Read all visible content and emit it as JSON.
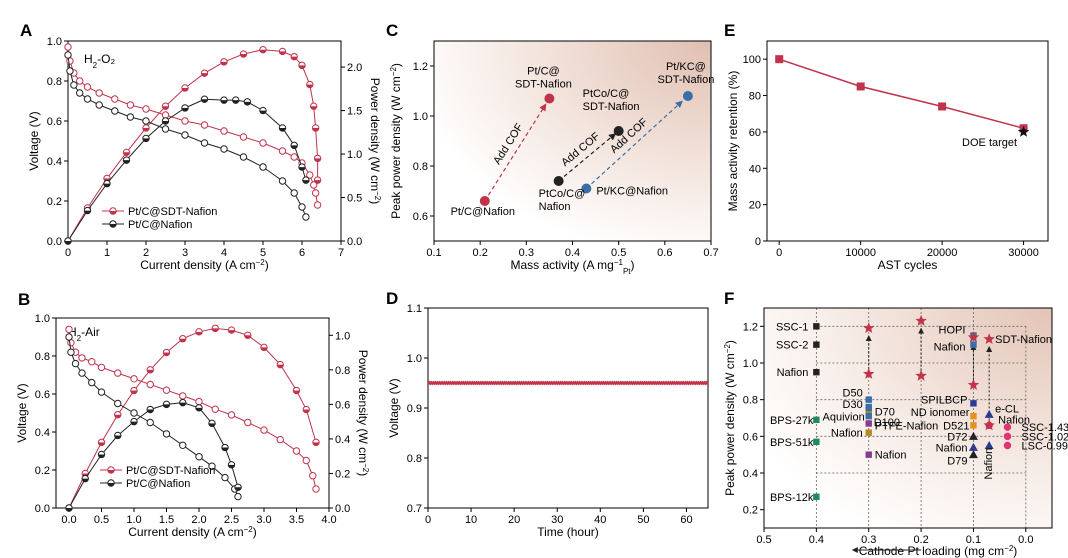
{
  "colors": {
    "red": "#c0334b",
    "black": "#222222",
    "blue": "#3a6ea5",
    "axis": "#000000"
  },
  "chart_data": [
    {
      "id": "A",
      "type": "line",
      "panel_label": "A",
      "xlabel": "Current density (A cm⁻²)",
      "ylabel": "Voltage (V)",
      "y2label": "Power density (W cm⁻²)",
      "xlim": [
        0,
        7
      ],
      "ylim": [
        0,
        1.0
      ],
      "y2lim": [
        0,
        2.3
      ],
      "xticks": [
        "0",
        "1",
        "2",
        "3",
        "4",
        "5",
        "6",
        "7"
      ],
      "yticks": [
        "0.0",
        "0.2",
        "0.4",
        "0.6",
        "0.8",
        "1.0"
      ],
      "y2ticks": [
        "0.0",
        "0.5",
        "1.0",
        "1.5",
        "2.0"
      ],
      "annotation": "H₂-O₂",
      "legend": [
        "Pt/C@SDT-Nafion",
        "Pt/C@Nafion"
      ],
      "series": [
        {
          "name": "Pt/C@SDT-Nafion",
          "color": "red",
          "kind": "voltage",
          "x": [
            0,
            0.05,
            0.15,
            0.3,
            0.5,
            0.8,
            1.2,
            1.6,
            2.0,
            2.5,
            3.0,
            3.5,
            4.0,
            4.5,
            5.0,
            5.5,
            5.8,
            6.0,
            6.2,
            6.3,
            6.35,
            6.4
          ],
          "y": [
            0.97,
            0.9,
            0.84,
            0.8,
            0.77,
            0.74,
            0.71,
            0.68,
            0.66,
            0.63,
            0.6,
            0.58,
            0.55,
            0.52,
            0.49,
            0.45,
            0.42,
            0.39,
            0.33,
            0.28,
            0.24,
            0.18
          ]
        },
        {
          "name": "Pt/C@SDT-Nafion",
          "color": "red",
          "kind": "power",
          "x": [
            0,
            0.5,
            1.0,
            1.5,
            2.0,
            2.5,
            3.0,
            3.5,
            4.0,
            4.5,
            5.0,
            5.5,
            5.8,
            6.0,
            6.2,
            6.3,
            6.35,
            6.4,
            6.4
          ],
          "y": [
            0,
            0.38,
            0.72,
            1.02,
            1.3,
            1.55,
            1.76,
            1.93,
            2.06,
            2.15,
            2.2,
            2.18,
            2.12,
            2.02,
            1.8,
            1.55,
            1.3,
            0.95,
            0.7
          ]
        },
        {
          "name": "Pt/C@Nafion",
          "color": "black",
          "kind": "voltage",
          "x": [
            0,
            0.05,
            0.15,
            0.3,
            0.5,
            0.8,
            1.2,
            1.6,
            2.0,
            2.5,
            3.0,
            3.5,
            4.0,
            4.5,
            5.0,
            5.5,
            5.8,
            6.0,
            6.1
          ],
          "y": [
            0.93,
            0.85,
            0.78,
            0.74,
            0.71,
            0.68,
            0.65,
            0.62,
            0.6,
            0.56,
            0.53,
            0.49,
            0.46,
            0.42,
            0.37,
            0.3,
            0.24,
            0.17,
            0.12
          ]
        },
        {
          "name": "Pt/C@Nafion",
          "color": "black",
          "kind": "power",
          "x": [
            0,
            0.5,
            1.0,
            1.5,
            2.0,
            2.5,
            3.0,
            3.5,
            4.0,
            4.3,
            4.6,
            5.0,
            5.5,
            5.8,
            6.0,
            6.1
          ],
          "y": [
            0,
            0.35,
            0.66,
            0.93,
            1.18,
            1.38,
            1.53,
            1.63,
            1.62,
            1.62,
            1.6,
            1.5,
            1.3,
            1.1,
            0.85,
            0.7
          ]
        }
      ]
    },
    {
      "id": "B",
      "type": "line",
      "panel_label": "B",
      "xlabel": "Current density (A cm⁻²)",
      "ylabel": "Voltage (V)",
      "y2label": "Power density (W cm⁻²)",
      "xlim": [
        -0.2,
        4.0
      ],
      "ylim": [
        0,
        1.0
      ],
      "y2lim": [
        0,
        1.1
      ],
      "xticks": [
        "0.0",
        "0.5",
        "1.0",
        "1.5",
        "2.0",
        "2.5",
        "3.0",
        "3.5",
        "4.0"
      ],
      "yticks": [
        "0.0",
        "0.2",
        "0.4",
        "0.6",
        "0.8",
        "1.0"
      ],
      "y2ticks": [
        "0.0",
        "0.2",
        "0.4",
        "0.6",
        "0.8",
        "1.0"
      ],
      "annotation": "H₂-Air",
      "legend": [
        "Pt/C@SDT-Nafion",
        "Pt/C@Nafion"
      ],
      "series": [
        {
          "name": "Pt/C@SDT-Nafion",
          "color": "red",
          "kind": "voltage",
          "x": [
            0,
            0.03,
            0.1,
            0.2,
            0.35,
            0.5,
            0.75,
            1.0,
            1.25,
            1.5,
            1.75,
            2.0,
            2.25,
            2.5,
            2.75,
            3.0,
            3.25,
            3.5,
            3.65,
            3.75,
            3.8
          ],
          "y": [
            0.94,
            0.87,
            0.82,
            0.79,
            0.77,
            0.74,
            0.71,
            0.68,
            0.65,
            0.62,
            0.59,
            0.56,
            0.52,
            0.49,
            0.45,
            0.41,
            0.36,
            0.3,
            0.25,
            0.17,
            0.1
          ]
        },
        {
          "name": "Pt/C@SDT-Nafion",
          "color": "red",
          "kind": "power",
          "x": [
            0,
            0.25,
            0.5,
            0.75,
            1.0,
            1.25,
            1.5,
            1.75,
            2.0,
            2.25,
            2.5,
            2.75,
            3.0,
            3.25,
            3.5,
            3.65,
            3.8
          ],
          "y": [
            0,
            0.2,
            0.38,
            0.54,
            0.68,
            0.8,
            0.9,
            0.98,
            1.02,
            1.04,
            1.03,
            1.0,
            0.93,
            0.83,
            0.68,
            0.57,
            0.38
          ]
        },
        {
          "name": "Pt/C@Nafion",
          "color": "black",
          "kind": "voltage",
          "x": [
            0,
            0.03,
            0.1,
            0.2,
            0.35,
            0.5,
            0.75,
            1.0,
            1.25,
            1.5,
            1.75,
            2.0,
            2.2,
            2.4,
            2.55,
            2.6
          ],
          "y": [
            0.9,
            0.82,
            0.76,
            0.71,
            0.66,
            0.61,
            0.55,
            0.5,
            0.45,
            0.39,
            0.33,
            0.27,
            0.22,
            0.16,
            0.1,
            0.06
          ]
        },
        {
          "name": "Pt/C@Nafion",
          "color": "black",
          "kind": "power",
          "x": [
            0,
            0.25,
            0.5,
            0.75,
            1.0,
            1.25,
            1.5,
            1.75,
            2.0,
            2.2,
            2.4,
            2.5,
            2.6
          ],
          "y": [
            0,
            0.17,
            0.31,
            0.42,
            0.5,
            0.57,
            0.6,
            0.61,
            0.58,
            0.49,
            0.35,
            0.25,
            0.12
          ]
        }
      ]
    },
    {
      "id": "C",
      "type": "scatter",
      "panel_label": "C",
      "xlabel": "Mass activity (A mg⁻¹Pt)",
      "ylabel": "Peak power density (W cm⁻²)",
      "xlim": [
        0.1,
        0.7
      ],
      "ylim": [
        0.5,
        1.3
      ],
      "xticks": [
        "0.1",
        "0.2",
        "0.3",
        "0.4",
        "0.5",
        "0.6",
        "0.7"
      ],
      "yticks": [
        "0.6",
        "0.8",
        "1.0",
        "1.2"
      ],
      "points": [
        {
          "label": "Pt/C@Nafion",
          "x": 0.21,
          "y": 0.66,
          "color": "red"
        },
        {
          "label": "Pt/C@ SDT-Nafion",
          "label_lines": [
            "Pt/C@",
            "SDT-Nafion"
          ],
          "x": 0.35,
          "y": 1.07,
          "color": "red"
        },
        {
          "label": "PtCo/C@ Nafion",
          "label_lines": [
            "PtCo/C@",
            "Nafion"
          ],
          "x": 0.37,
          "y": 0.74,
          "color": "black"
        },
        {
          "label": "PtCo/C@ SDT-Nafion",
          "label_lines": [
            "PtCo/C@",
            "SDT-Nafion"
          ],
          "x": 0.5,
          "y": 0.94,
          "color": "black"
        },
        {
          "label": "Pt/KC@Nafion",
          "x": 0.43,
          "y": 0.71,
          "color": "blue"
        },
        {
          "label": "Pt/KC@ SDT-Nafion",
          "label_lines": [
            "Pt/KC@",
            "SDT-Nafion"
          ],
          "x": 0.65,
          "y": 1.08,
          "color": "blue"
        }
      ],
      "arrow_label": "Add COF"
    },
    {
      "id": "D",
      "type": "line",
      "panel_label": "D",
      "xlabel": "Time (hour)",
      "ylabel": "Voltage (V)",
      "xlim": [
        0,
        65
      ],
      "ylim": [
        0.7,
        1.1
      ],
      "xticks": [
        "0",
        "10",
        "20",
        "30",
        "40",
        "50",
        "60"
      ],
      "yticks": [
        "0.7",
        "0.8",
        "0.9",
        "1.0",
        "1.1"
      ],
      "series": [
        {
          "name": "voltage",
          "color": "red",
          "x": [
            0,
            65
          ],
          "y": [
            0.95,
            0.95
          ]
        }
      ]
    },
    {
      "id": "E",
      "type": "line",
      "panel_label": "E",
      "xlabel": "AST cycles",
      "ylabel": "Mass activity retention (%)",
      "xlim": [
        -1500,
        33000
      ],
      "ylim": [
        0,
        110
      ],
      "xticks": [
        "0",
        "10000",
        "20000",
        "30000"
      ],
      "yticks": [
        "0",
        "20",
        "40",
        "60",
        "80",
        "100"
      ],
      "series": [
        {
          "name": "retention",
          "color": "red",
          "x": [
            0,
            10000,
            20000,
            30000
          ],
          "y": [
            100,
            85,
            74,
            62
          ]
        }
      ],
      "target": {
        "label": "DOE target",
        "x": 30000,
        "y": 60
      }
    },
    {
      "id": "F",
      "type": "scatter",
      "panel_label": "F",
      "xlabel": "Cathode Pt loading (mg cm⁻²)",
      "ylabel": "Peak power density (W cm⁻²)",
      "xlim": [
        0.5,
        -0.05
      ],
      "ylim": [
        0.1,
        1.3
      ],
      "xticks": [
        "0.5",
        "0.4",
        "0.3",
        "0.2",
        "0.1",
        "0.0"
      ],
      "yticks": [
        "0.2",
        "0.4",
        "0.6",
        "0.8",
        "1.0",
        "1.2"
      ],
      "points": [
        {
          "label": "SSC-1",
          "x": 0.4,
          "y": 1.2,
          "color": "black"
        },
        {
          "label": "SSC-2",
          "x": 0.4,
          "y": 1.1,
          "color": "black"
        },
        {
          "label": "Nafion",
          "x": 0.4,
          "y": 0.95,
          "color": "black"
        },
        {
          "label": "BPS-27k",
          "x": 0.4,
          "y": 0.69,
          "color": "green"
        },
        {
          "label": "BPS-51k",
          "x": 0.4,
          "y": 0.57,
          "color": "green"
        },
        {
          "label": "BPS-12k",
          "x": 0.4,
          "y": 0.27,
          "color": "green"
        },
        {
          "label": "D50",
          "x": 0.3,
          "y": 0.8,
          "color": "blue"
        },
        {
          "label": "D30",
          "x": 0.3,
          "y": 0.76,
          "color": "blue"
        },
        {
          "label": "D70",
          "x": 0.3,
          "y": 0.74,
          "color": "blue"
        },
        {
          "label": "Aquivion",
          "x": 0.3,
          "y": 0.72,
          "color": "olive"
        },
        {
          "label": "D100",
          "x": 0.3,
          "y": 0.71,
          "color": "blue"
        },
        {
          "label": "PTFE-Nafion",
          "x": 0.3,
          "y": 0.67,
          "color": "purple"
        },
        {
          "label": "Nafion",
          "x": 0.3,
          "y": 0.62,
          "color": "olive"
        },
        {
          "label": "Nafion",
          "x": 0.3,
          "y": 0.5,
          "color": "purple"
        },
        {
          "label": "HOPI",
          "x": 0.1,
          "y": 1.15,
          "color": "blue"
        },
        {
          "label": "Nafion",
          "x": 0.1,
          "y": 1.1,
          "color": "blue"
        },
        {
          "label": "SPILBCP",
          "x": 0.1,
          "y": 0.78,
          "color": "navy"
        },
        {
          "label": "ND ionomer",
          "x": 0.1,
          "y": 0.71,
          "color": "orange"
        },
        {
          "label": "D521",
          "x": 0.1,
          "y": 0.66,
          "color": "orange"
        },
        {
          "label": "D72",
          "x": 0.1,
          "y": 0.6,
          "color": "black"
        },
        {
          "label": "Nafion",
          "x": 0.1,
          "y": 0.54,
          "color": "navy"
        },
        {
          "label": "D79",
          "x": 0.1,
          "y": 0.5,
          "color": "black"
        },
        {
          "label": "e-CL",
          "x": 0.07,
          "y": 0.72,
          "color": "navy"
        },
        {
          "label": "Nafion",
          "x": 0.07,
          "y": 0.55,
          "color": "navy"
        },
        {
          "label": "Nafion",
          "x": 0.07,
          "y": 0.66,
          "color": "magenta"
        },
        {
          "label": "SSC-1.43",
          "x": 0.035,
          "y": 0.65,
          "color": "magenta"
        },
        {
          "label": "SSC-1.02",
          "x": 0.035,
          "y": 0.6,
          "color": "magenta"
        },
        {
          "label": "LSC-0.99",
          "x": 0.035,
          "y": 0.55,
          "color": "magenta"
        },
        {
          "label": "SDT-Nafion",
          "x": 0.3,
          "y": 1.19,
          "color": "red"
        },
        {
          "label": "SDT-Nafion",
          "x": 0.3,
          "y": 0.94,
          "color": "red"
        },
        {
          "label": "SDT-Nafion",
          "x": 0.2,
          "y": 1.23,
          "color": "red"
        },
        {
          "label": "SDT-Nafion",
          "x": 0.2,
          "y": 0.93,
          "color": "red"
        },
        {
          "label": "SDT-Nafion",
          "x": 0.1,
          "y": 1.14,
          "color": "red"
        },
        {
          "label": "SDT-Nafion",
          "x": 0.1,
          "y": 0.88,
          "color": "red"
        },
        {
          "label": "SDT-Nafion",
          "x": 0.07,
          "y": 1.13,
          "color": "red"
        },
        {
          "label": "SDT-Nafion",
          "x": 0.07,
          "y": 0.66,
          "color": "red"
        }
      ]
    }
  ]
}
